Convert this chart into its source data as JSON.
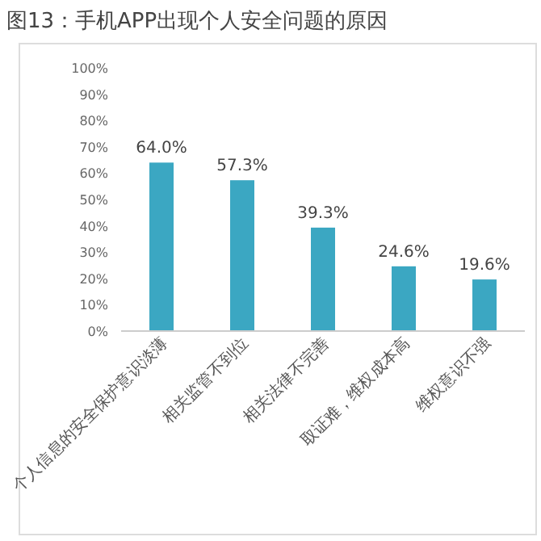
{
  "chart_data": {
    "type": "bar",
    "title": "图13：手机APP出现个人安全问题的原因",
    "categories": [
      "个人信息的安全保护意识淡薄",
      "相关监管不到位",
      "相关法律不完善",
      "取证难，维权成本高",
      "维权意识不强"
    ],
    "values": [
      64.0,
      57.3,
      39.3,
      24.6,
      19.6
    ],
    "value_labels": [
      "64.0%",
      "57.3%",
      "39.3%",
      "24.6%",
      "19.6%"
    ],
    "color": "#3ba7c2",
    "ylim": [
      0,
      100
    ],
    "yticks": [
      {
        "value": 0,
        "label": "0%"
      },
      {
        "value": 10,
        "label": "10%"
      },
      {
        "value": 20,
        "label": "20%"
      },
      {
        "value": 30,
        "label": "30%"
      },
      {
        "value": 40,
        "label": "40%"
      },
      {
        "value": 50,
        "label": "50%"
      },
      {
        "value": 60,
        "label": "60%"
      },
      {
        "value": 70,
        "label": "70%"
      },
      {
        "value": 80,
        "label": "80%"
      },
      {
        "value": 90,
        "label": "90%"
      },
      {
        "value": 100,
        "label": "100%"
      }
    ],
    "grid": false
  }
}
